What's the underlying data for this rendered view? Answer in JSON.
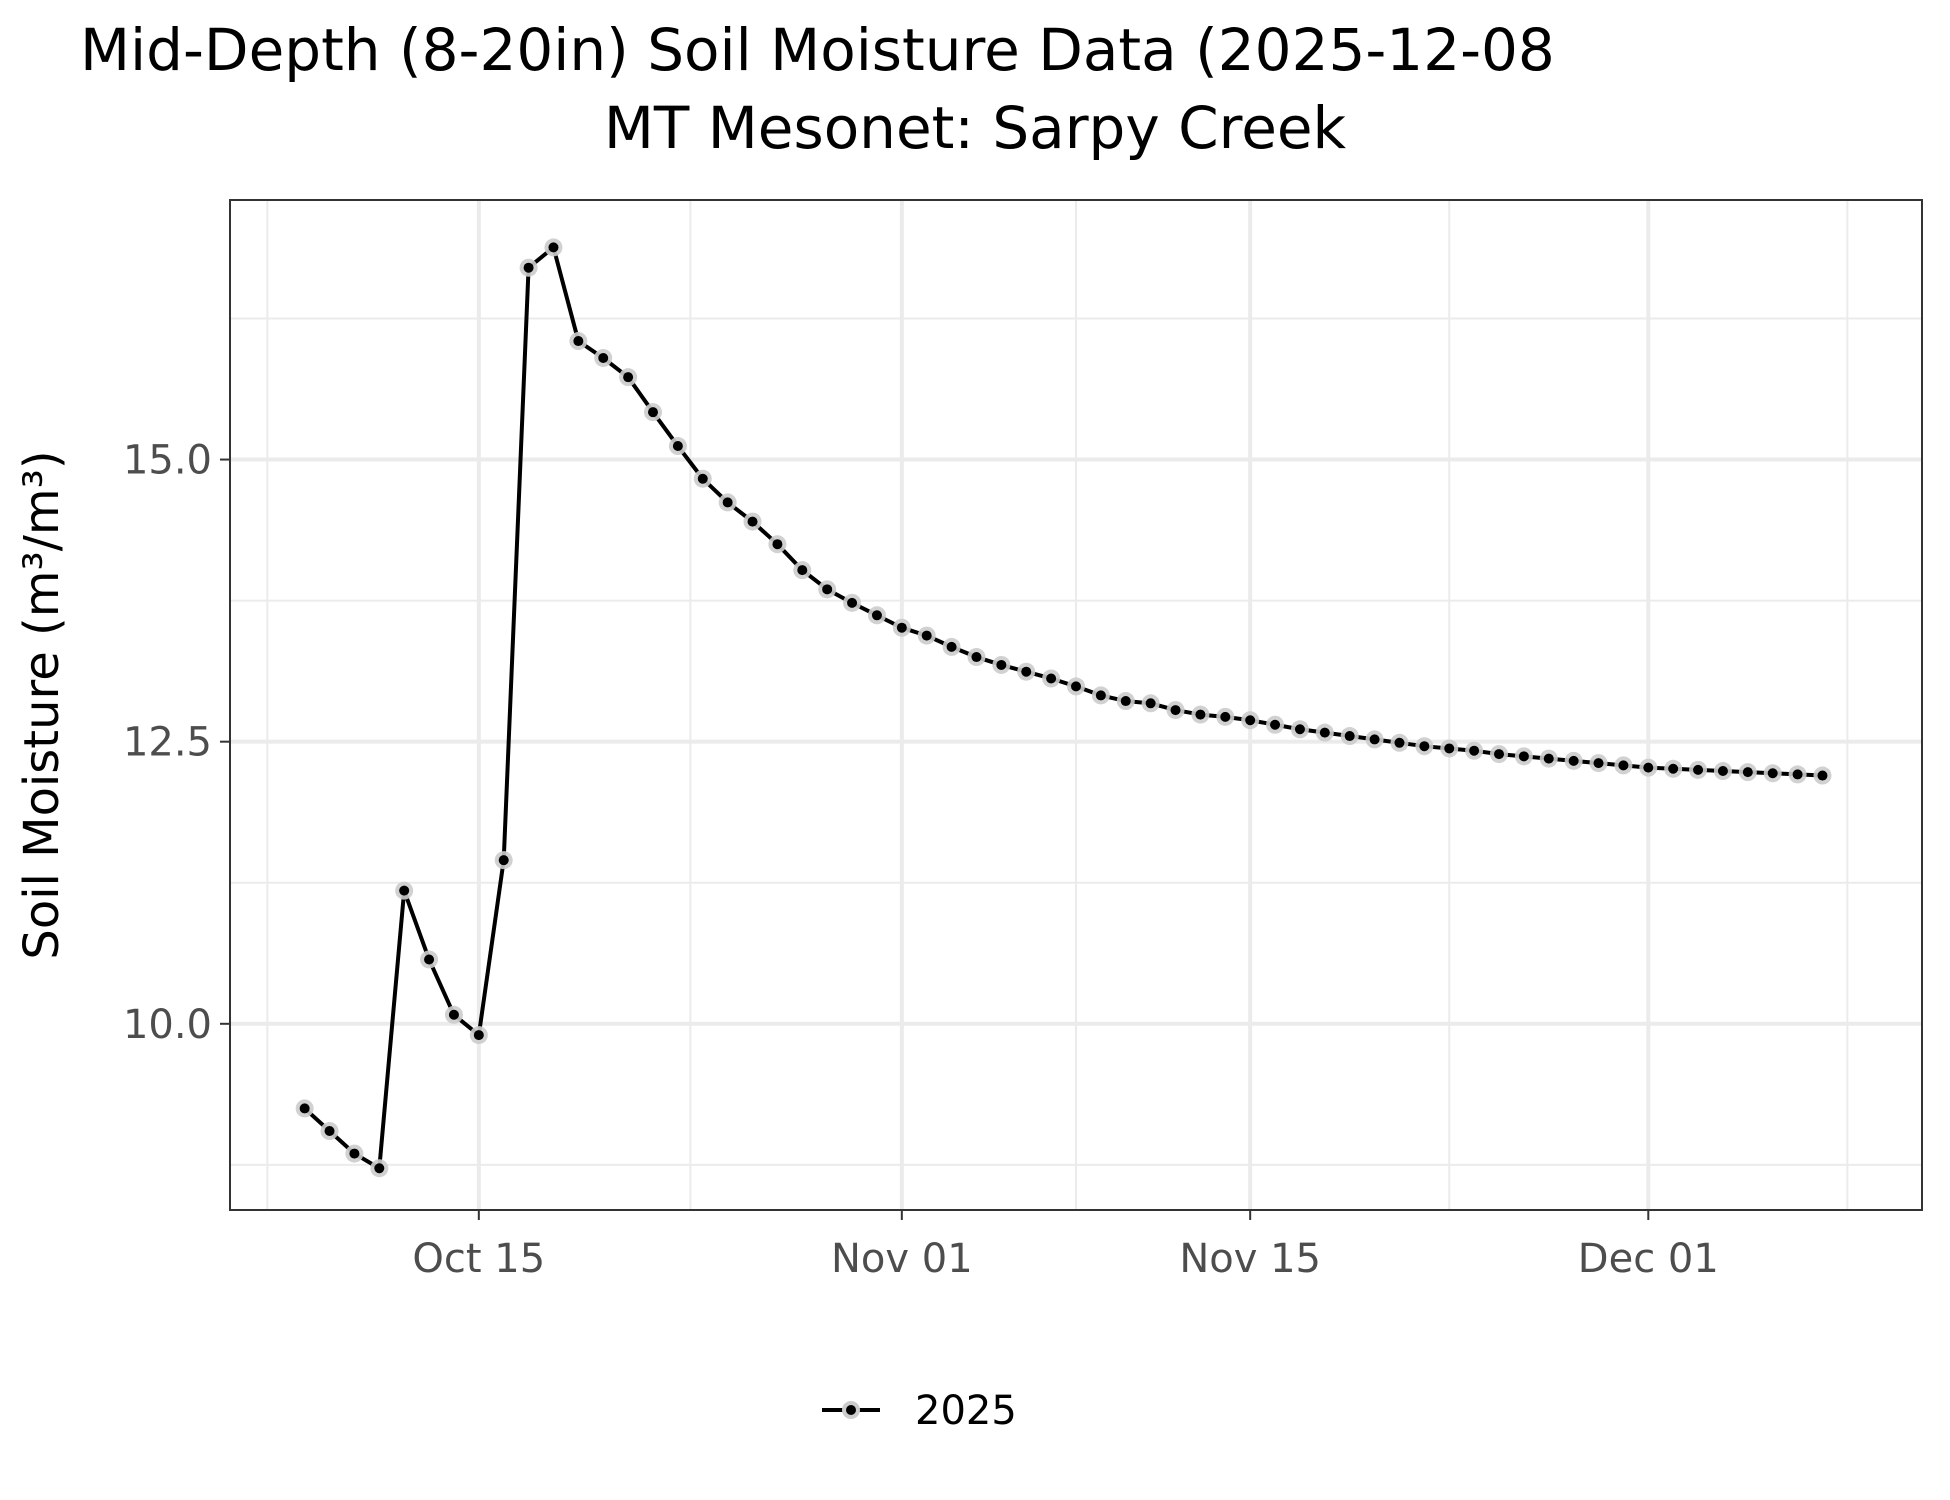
{
  "chart_data": {
    "type": "line",
    "title": "Mid-Depth (8-20in) Soil Moisture Data (2025-12-08",
    "subtitle": "MT Mesonet: Sarpy Creek",
    "xlabel": "",
    "ylabel": "Soil Moisture (m³/m³)",
    "xlim": [
      "2025-10-05",
      "2025-12-12"
    ],
    "ylim": [
      8.35,
      17.3
    ],
    "x_ticks": [
      {
        "date": "2025-10-15",
        "label": "Oct 15"
      },
      {
        "date": "2025-11-01",
        "label": "Nov 01"
      },
      {
        "date": "2025-11-15",
        "label": "Nov 15"
      },
      {
        "date": "2025-12-01",
        "label": "Dec 01"
      }
    ],
    "y_ticks": [
      {
        "value": 10.0,
        "label": "10.0"
      },
      {
        "value": 12.5,
        "label": "12.5"
      },
      {
        "value": 15.0,
        "label": "15.0"
      }
    ],
    "grid": true,
    "legend_position": "bottom",
    "series": [
      {
        "name": "2025",
        "color": "#000000",
        "marker_halo_color": "#cccccc",
        "points": [
          [
            "2025-10-08",
            9.25
          ],
          [
            "2025-10-09",
            9.05
          ],
          [
            "2025-10-10",
            8.85
          ],
          [
            "2025-10-11",
            8.72
          ],
          [
            "2025-10-12",
            11.18
          ],
          [
            "2025-10-13",
            10.57
          ],
          [
            "2025-10-14",
            10.08
          ],
          [
            "2025-10-15",
            9.9
          ],
          [
            "2025-10-16",
            11.45
          ],
          [
            "2025-10-17",
            16.7
          ],
          [
            "2025-10-18",
            16.88
          ],
          [
            "2025-10-19",
            16.05
          ],
          [
            "2025-10-20",
            15.9
          ],
          [
            "2025-10-21",
            15.73
          ],
          [
            "2025-10-22",
            15.42
          ],
          [
            "2025-10-23",
            15.12
          ],
          [
            "2025-10-24",
            14.83
          ],
          [
            "2025-10-25",
            14.62
          ],
          [
            "2025-10-26",
            14.45
          ],
          [
            "2025-10-27",
            14.25
          ],
          [
            "2025-10-28",
            14.02
          ],
          [
            "2025-10-29",
            13.85
          ],
          [
            "2025-10-30",
            13.73
          ],
          [
            "2025-10-31",
            13.62
          ],
          [
            "2025-11-01",
            13.51
          ],
          [
            "2025-11-02",
            13.44
          ],
          [
            "2025-11-03",
            13.34
          ],
          [
            "2025-11-04",
            13.25
          ],
          [
            "2025-11-05",
            13.18
          ],
          [
            "2025-11-06",
            13.12
          ],
          [
            "2025-11-07",
            13.06
          ],
          [
            "2025-11-08",
            12.99
          ],
          [
            "2025-11-09",
            12.91
          ],
          [
            "2025-11-10",
            12.86
          ],
          [
            "2025-11-11",
            12.84
          ],
          [
            "2025-11-12",
            12.78
          ],
          [
            "2025-11-13",
            12.74
          ],
          [
            "2025-11-14",
            12.72
          ],
          [
            "2025-11-15",
            12.69
          ],
          [
            "2025-11-16",
            12.65
          ],
          [
            "2025-11-17",
            12.61
          ],
          [
            "2025-11-18",
            12.58
          ],
          [
            "2025-11-19",
            12.55
          ],
          [
            "2025-11-20",
            12.52
          ],
          [
            "2025-11-21",
            12.49
          ],
          [
            "2025-11-22",
            12.46
          ],
          [
            "2025-11-23",
            12.44
          ],
          [
            "2025-11-24",
            12.42
          ],
          [
            "2025-11-25",
            12.39
          ],
          [
            "2025-11-26",
            12.37
          ],
          [
            "2025-11-27",
            12.35
          ],
          [
            "2025-11-28",
            12.33
          ],
          [
            "2025-11-29",
            12.31
          ],
          [
            "2025-11-30",
            12.29
          ],
          [
            "2025-12-01",
            12.27
          ],
          [
            "2025-12-02",
            12.26
          ],
          [
            "2025-12-03",
            12.25
          ],
          [
            "2025-12-04",
            12.24
          ],
          [
            "2025-12-05",
            12.23
          ],
          [
            "2025-12-06",
            12.22
          ],
          [
            "2025-12-07",
            12.21
          ],
          [
            "2025-12-08",
            12.2
          ]
        ]
      }
    ]
  }
}
